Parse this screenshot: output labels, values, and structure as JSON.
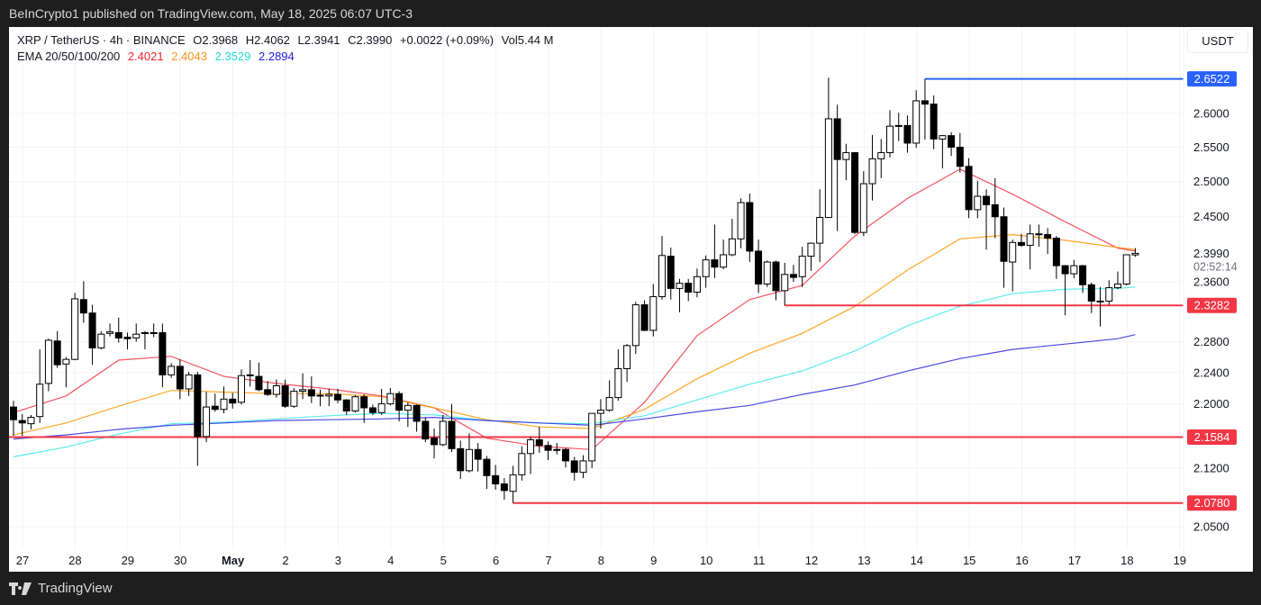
{
  "publish_line": "BeInCrypto1 published on TradingView.com, May 18, 2025 06:07 UTC-3",
  "legend": {
    "symbol": "XRP / TetherUS · 4h · BINANCE",
    "open": "O2.3968",
    "high": "H2.4062",
    "low": "L2.3941",
    "close": "C2.3990",
    "change": "+0.0022 (+0.09%)",
    "volume": "Vol5.44 M",
    "ema_label": "EMA 20/50/100/200",
    "ema_values": [
      "2.4021",
      "2.4043",
      "2.3529",
      "2.2894"
    ]
  },
  "currency_button": "USDT",
  "footer_brand": "TradingView",
  "colors": {
    "ema20": "#f23645",
    "ema50": "#ff9800",
    "ema100": "#3ee8e8",
    "ema200": "#2b2be0",
    "resistance": "#2962ff",
    "support": "#f23645",
    "candle_up": "#ffffff",
    "candle_down": "#000000"
  },
  "chart_data": {
    "type": "candlestick",
    "symbol": "XRP / TetherUS",
    "interval": "4h",
    "exchange": "BINANCE",
    "y_scale": "log",
    "ylim": [
      2.03,
      2.68
    ],
    "grid": true,
    "x_tick_labels": [
      "27",
      "28",
      "29",
      "30",
      "May",
      "2",
      "3",
      "4",
      "5",
      "6",
      "7",
      "8",
      "9",
      "10",
      "11",
      "12",
      "13",
      "14",
      "15",
      "16",
      "17",
      "18",
      "19"
    ],
    "y_tick_labels": [
      "2.6000",
      "2.5500",
      "2.5000",
      "2.4500",
      "2.3600",
      "2.2800",
      "2.2400",
      "2.2000",
      "2.1200",
      "2.0500"
    ],
    "candles_ohlc": [
      [
        2.196,
        2.204,
        2.16,
        2.18
      ],
      [
        2.179,
        2.187,
        2.16,
        2.176
      ],
      [
        2.175,
        2.186,
        2.168,
        2.183
      ],
      [
        2.184,
        2.27,
        2.176,
        2.225
      ],
      [
        2.226,
        2.284,
        2.216,
        2.282
      ],
      [
        2.281,
        2.294,
        2.246,
        2.25
      ],
      [
        2.251,
        2.26,
        2.221,
        2.257
      ],
      [
        2.257,
        2.345,
        2.256,
        2.337
      ],
      [
        2.336,
        2.361,
        2.305,
        2.318
      ],
      [
        2.318,
        2.329,
        2.25,
        2.272
      ],
      [
        2.272,
        2.294,
        2.27,
        2.29
      ],
      [
        2.291,
        2.304,
        2.287,
        2.293
      ],
      [
        2.292,
        2.312,
        2.279,
        2.285
      ],
      [
        2.286,
        2.292,
        2.27,
        2.284
      ],
      [
        2.285,
        2.304,
        2.28,
        2.29
      ],
      [
        2.291,
        2.294,
        2.27,
        2.292
      ],
      [
        2.292,
        2.304,
        2.286,
        2.292
      ],
      [
        2.292,
        2.304,
        2.221,
        2.237
      ],
      [
        2.237,
        2.252,
        2.233,
        2.248
      ],
      [
        2.248,
        2.257,
        2.206,
        2.219
      ],
      [
        2.219,
        2.241,
        2.21,
        2.237
      ],
      [
        2.237,
        2.241,
        2.123,
        2.159
      ],
      [
        2.159,
        2.215,
        2.152,
        2.196
      ],
      [
        2.197,
        2.213,
        2.19,
        2.193
      ],
      [
        2.193,
        2.222,
        2.188,
        2.206
      ],
      [
        2.206,
        2.214,
        2.194,
        2.201
      ],
      [
        2.202,
        2.244,
        2.199,
        2.236
      ],
      [
        2.236,
        2.256,
        2.222,
        2.237
      ],
      [
        2.235,
        2.253,
        2.216,
        2.218
      ],
      [
        2.218,
        2.229,
        2.21,
        2.212
      ],
      [
        2.212,
        2.231,
        2.208,
        2.223
      ],
      [
        2.223,
        2.231,
        2.195,
        2.197
      ],
      [
        2.197,
        2.22,
        2.195,
        2.216
      ],
      [
        2.216,
        2.239,
        2.206,
        2.218
      ],
      [
        2.218,
        2.235,
        2.201,
        2.21
      ],
      [
        2.211,
        2.218,
        2.197,
        2.21
      ],
      [
        2.21,
        2.219,
        2.197,
        2.212
      ],
      [
        2.212,
        2.219,
        2.201,
        2.205
      ],
      [
        2.205,
        2.206,
        2.186,
        2.191
      ],
      [
        2.191,
        2.211,
        2.189,
        2.209
      ],
      [
        2.209,
        2.212,
        2.176,
        2.195
      ],
      [
        2.195,
        2.199,
        2.186,
        2.189
      ],
      [
        2.189,
        2.219,
        2.186,
        2.2
      ],
      [
        2.2,
        2.22,
        2.198,
        2.213
      ],
      [
        2.213,
        2.216,
        2.178,
        2.192
      ],
      [
        2.192,
        2.202,
        2.171,
        2.198
      ],
      [
        2.198,
        2.199,
        2.165,
        2.178
      ],
      [
        2.178,
        2.183,
        2.152,
        2.156
      ],
      [
        2.157,
        2.169,
        2.132,
        2.149
      ],
      [
        2.149,
        2.186,
        2.147,
        2.178
      ],
      [
        2.178,
        2.2,
        2.14,
        2.144
      ],
      [
        2.144,
        2.154,
        2.107,
        2.117
      ],
      [
        2.117,
        2.163,
        2.115,
        2.143
      ],
      [
        2.143,
        2.151,
        2.116,
        2.131
      ],
      [
        2.131,
        2.135,
        2.095,
        2.111
      ],
      [
        2.111,
        2.124,
        2.094,
        2.101
      ],
      [
        2.101,
        2.108,
        2.082,
        2.093
      ],
      [
        2.092,
        2.123,
        2.078,
        2.112
      ],
      [
        2.112,
        2.147,
        2.105,
        2.138
      ],
      [
        2.138,
        2.159,
        2.113,
        2.155
      ],
      [
        2.155,
        2.171,
        2.139,
        2.148
      ],
      [
        2.148,
        2.153,
        2.13,
        2.142
      ],
      [
        2.142,
        2.151,
        2.137,
        2.143
      ],
      [
        2.143,
        2.145,
        2.121,
        2.129
      ],
      [
        2.129,
        2.134,
        2.105,
        2.115
      ],
      [
        2.115,
        2.136,
        2.108,
        2.129
      ],
      [
        2.129,
        2.188,
        2.12,
        2.188
      ],
      [
        2.188,
        2.206,
        2.169,
        2.192
      ],
      [
        2.192,
        2.23,
        2.19,
        2.208
      ],
      [
        2.208,
        2.27,
        2.204,
        2.245
      ],
      [
        2.245,
        2.277,
        2.228,
        2.275
      ],
      [
        2.275,
        2.333,
        2.264,
        2.329
      ],
      [
        2.329,
        2.335,
        2.294,
        2.295
      ],
      [
        2.295,
        2.357,
        2.287,
        2.34
      ],
      [
        2.34,
        2.423,
        2.336,
        2.396
      ],
      [
        2.395,
        2.407,
        2.336,
        2.351
      ],
      [
        2.351,
        2.364,
        2.319,
        2.358
      ],
      [
        2.358,
        2.364,
        2.334,
        2.346
      ],
      [
        2.346,
        2.378,
        2.339,
        2.367
      ],
      [
        2.367,
        2.396,
        2.352,
        2.39
      ],
      [
        2.39,
        2.439,
        2.365,
        2.38
      ],
      [
        2.38,
        2.418,
        2.377,
        2.397
      ],
      [
        2.397,
        2.447,
        2.395,
        2.419
      ],
      [
        2.419,
        2.476,
        2.406,
        2.47
      ],
      [
        2.47,
        2.483,
        2.387,
        2.402
      ],
      [
        2.402,
        2.418,
        2.345,
        2.357
      ],
      [
        2.357,
        2.389,
        2.353,
        2.387
      ],
      [
        2.387,
        2.389,
        2.335,
        2.348
      ],
      [
        2.348,
        2.386,
        2.328,
        2.37
      ],
      [
        2.37,
        2.383,
        2.36,
        2.366
      ],
      [
        2.367,
        2.408,
        2.353,
        2.395
      ],
      [
        2.395,
        2.414,
        2.375,
        2.413
      ],
      [
        2.413,
        2.489,
        2.387,
        2.449
      ],
      [
        2.449,
        2.654,
        2.449,
        2.592
      ],
      [
        2.592,
        2.613,
        2.43,
        2.532
      ],
      [
        2.532,
        2.555,
        2.502,
        2.542
      ],
      [
        2.542,
        2.543,
        2.426,
        2.428
      ],
      [
        2.428,
        2.515,
        2.423,
        2.497
      ],
      [
        2.497,
        2.568,
        2.473,
        2.533
      ],
      [
        2.533,
        2.562,
        2.505,
        2.542
      ],
      [
        2.542,
        2.605,
        2.535,
        2.581
      ],
      [
        2.581,
        2.601,
        2.559,
        2.582
      ],
      [
        2.582,
        2.597,
        2.542,
        2.556
      ],
      [
        2.556,
        2.635,
        2.549,
        2.619
      ],
      [
        2.619,
        2.6522,
        2.561,
        2.614
      ],
      [
        2.614,
        2.627,
        2.547,
        2.562
      ],
      [
        2.562,
        2.568,
        2.519,
        2.567
      ],
      [
        2.567,
        2.572,
        2.537,
        2.55
      ],
      [
        2.55,
        2.571,
        2.513,
        2.522
      ],
      [
        2.522,
        2.534,
        2.448,
        2.46
      ],
      [
        2.46,
        2.501,
        2.448,
        2.479
      ],
      [
        2.479,
        2.489,
        2.404,
        2.467
      ],
      [
        2.467,
        2.505,
        2.42,
        2.45
      ],
      [
        2.45,
        2.463,
        2.352,
        2.388
      ],
      [
        2.387,
        2.418,
        2.347,
        2.414
      ],
      [
        2.414,
        2.426,
        2.408,
        2.41
      ],
      [
        2.41,
        2.439,
        2.377,
        2.426
      ],
      [
        2.426,
        2.439,
        2.408,
        2.426
      ],
      [
        2.425,
        2.434,
        2.398,
        2.42
      ],
      [
        2.42,
        2.423,
        2.364,
        2.382
      ],
      [
        2.382,
        2.383,
        2.315,
        2.371
      ],
      [
        2.371,
        2.39,
        2.365,
        2.382
      ],
      [
        2.382,
        2.383,
        2.345,
        2.356
      ],
      [
        2.356,
        2.359,
        2.318,
        2.334
      ],
      [
        2.334,
        2.353,
        2.3,
        2.334
      ],
      [
        2.334,
        2.362,
        2.329,
        2.352
      ],
      [
        2.352,
        2.374,
        2.35,
        2.357
      ],
      [
        2.357,
        2.397,
        2.355,
        2.397
      ],
      [
        2.3968,
        2.4062,
        2.3941,
        2.399
      ]
    ],
    "ema_series": [
      {
        "name": "EMA 20",
        "color_key": "ema20",
        "points": [
          [
            0,
            2.189
          ],
          [
            6,
            2.21
          ],
          [
            12,
            2.256
          ],
          [
            18,
            2.261
          ],
          [
            24,
            2.235
          ],
          [
            30,
            2.226
          ],
          [
            36,
            2.219
          ],
          [
            42,
            2.21
          ],
          [
            48,
            2.195
          ],
          [
            54,
            2.157
          ],
          [
            60,
            2.147
          ],
          [
            66,
            2.143
          ],
          [
            72,
            2.202
          ],
          [
            78,
            2.288
          ],
          [
            84,
            2.336
          ],
          [
            90,
            2.355
          ],
          [
            96,
            2.423
          ],
          [
            102,
            2.476
          ],
          [
            108,
            2.518
          ],
          [
            114,
            2.482
          ],
          [
            120,
            2.443
          ],
          [
            126,
            2.406
          ],
          [
            128,
            2.4021
          ]
        ]
      },
      {
        "name": "EMA 50",
        "color_key": "ema50",
        "points": [
          [
            0,
            2.161
          ],
          [
            6,
            2.176
          ],
          [
            12,
            2.197
          ],
          [
            18,
            2.217
          ],
          [
            24,
            2.215
          ],
          [
            30,
            2.213
          ],
          [
            36,
            2.213
          ],
          [
            42,
            2.209
          ],
          [
            48,
            2.195
          ],
          [
            54,
            2.18
          ],
          [
            60,
            2.171
          ],
          [
            66,
            2.169
          ],
          [
            72,
            2.193
          ],
          [
            78,
            2.232
          ],
          [
            84,
            2.265
          ],
          [
            90,
            2.291
          ],
          [
            96,
            2.327
          ],
          [
            102,
            2.376
          ],
          [
            108,
            2.419
          ],
          [
            114,
            2.425
          ],
          [
            120,
            2.417
          ],
          [
            126,
            2.407
          ],
          [
            128,
            2.4043
          ]
        ]
      },
      {
        "name": "EMA 100",
        "color_key": "ema100",
        "points": [
          [
            0,
            2.134
          ],
          [
            6,
            2.146
          ],
          [
            12,
            2.162
          ],
          [
            18,
            2.175
          ],
          [
            24,
            2.177
          ],
          [
            30,
            2.181
          ],
          [
            36,
            2.185
          ],
          [
            42,
            2.188
          ],
          [
            48,
            2.186
          ],
          [
            54,
            2.179
          ],
          [
            60,
            2.176
          ],
          [
            66,
            2.175
          ],
          [
            72,
            2.185
          ],
          [
            78,
            2.205
          ],
          [
            84,
            2.225
          ],
          [
            90,
            2.242
          ],
          [
            96,
            2.268
          ],
          [
            102,
            2.301
          ],
          [
            108,
            2.327
          ],
          [
            114,
            2.344
          ],
          [
            120,
            2.35
          ],
          [
            126,
            2.351
          ],
          [
            128,
            2.3529
          ]
        ]
      },
      {
        "name": "EMA 200",
        "color_key": "ema200",
        "points": [
          [
            0,
            2.156
          ],
          [
            6,
            2.161
          ],
          [
            12,
            2.168
          ],
          [
            18,
            2.173
          ],
          [
            24,
            2.176
          ],
          [
            30,
            2.179
          ],
          [
            36,
            2.18
          ],
          [
            42,
            2.181
          ],
          [
            48,
            2.183
          ],
          [
            54,
            2.179
          ],
          [
            60,
            2.176
          ],
          [
            66,
            2.173
          ],
          [
            72,
            2.181
          ],
          [
            78,
            2.19
          ],
          [
            84,
            2.198
          ],
          [
            90,
            2.212
          ],
          [
            96,
            2.224
          ],
          [
            102,
            2.242
          ],
          [
            108,
            2.258
          ],
          [
            114,
            2.27
          ],
          [
            120,
            2.277
          ],
          [
            126,
            2.284
          ],
          [
            128,
            2.2894
          ]
        ]
      }
    ],
    "levels": [
      {
        "price": 2.6522,
        "label": "2.6522",
        "color_key": "resistance",
        "from_candle": 104
      },
      {
        "price": 2.3282,
        "label": "2.3282",
        "color_key": "support",
        "from_candle": 88
      },
      {
        "price": 2.1584,
        "label": "2.1584",
        "color_key": "support",
        "from_candle": 0
      },
      {
        "price": 2.078,
        "label": "2.0780",
        "color_key": "support",
        "from_candle": 57
      }
    ],
    "last_price": {
      "price": 2.399,
      "label": "2.3990",
      "countdown": "02:52:14"
    }
  }
}
